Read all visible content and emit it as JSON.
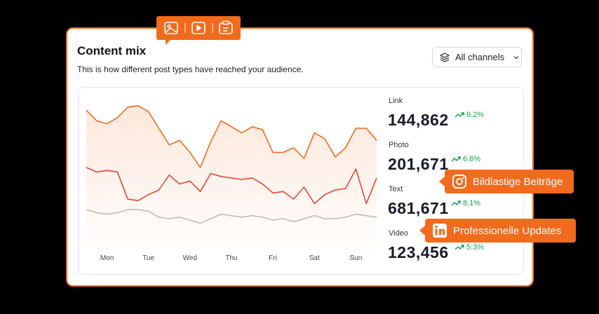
{
  "header": {
    "title": "Content mix",
    "subtitle": "This is how different post types have reached your audience.",
    "dropdown": "All channels"
  },
  "stats": [
    {
      "label": "Link",
      "value": "144,862",
      "change": "9.2%"
    },
    {
      "label": "Photo",
      "value": "201,671",
      "change": "6.6%"
    },
    {
      "label": "Text",
      "value": "681,671",
      "change": "8.1%"
    },
    {
      "label": "Video",
      "value": "123,456",
      "change": "5.3%"
    }
  ],
  "callouts": [
    "Bildlastige Beiträge",
    "Professionelle Updates"
  ],
  "chart_data": {
    "type": "line",
    "categories": [
      null,
      null,
      "Mon",
      null,
      null,
      null,
      "Tue",
      null,
      null,
      null,
      "Wed",
      null,
      null,
      null,
      "Thu",
      null,
      null,
      null,
      "Fri",
      null,
      null,
      null,
      "Sat",
      null,
      null,
      null,
      "Sun",
      null,
      null
    ],
    "ylim": [
      0,
      100
    ],
    "series": [
      {
        "color": "#f26b1d",
        "fill": true,
        "values": [
          92,
          85,
          83,
          87,
          94,
          95,
          91,
          80,
          69,
          72,
          64,
          54,
          71,
          85,
          81,
          77,
          81,
          79,
          64,
          64,
          67,
          60,
          77,
          73,
          61,
          67,
          80,
          80,
          72
        ]
      },
      {
        "color": "#e24a3b",
        "values": [
          54,
          51,
          52,
          51,
          33,
          32,
          36,
          39,
          49,
          43,
          45,
          38,
          50,
          48,
          47,
          46,
          47,
          43,
          37,
          38,
          33,
          41,
          30,
          36,
          39,
          40,
          53,
          30,
          47
        ]
      },
      {
        "color": "#bdbdbd",
        "values": [
          26,
          24,
          23,
          24,
          26,
          26,
          25,
          21,
          20,
          21,
          19,
          17,
          20,
          23,
          22,
          21,
          22,
          21,
          19,
          20,
          18,
          20,
          22,
          20,
          20,
          21,
          23,
          22,
          21
        ]
      }
    ]
  }
}
